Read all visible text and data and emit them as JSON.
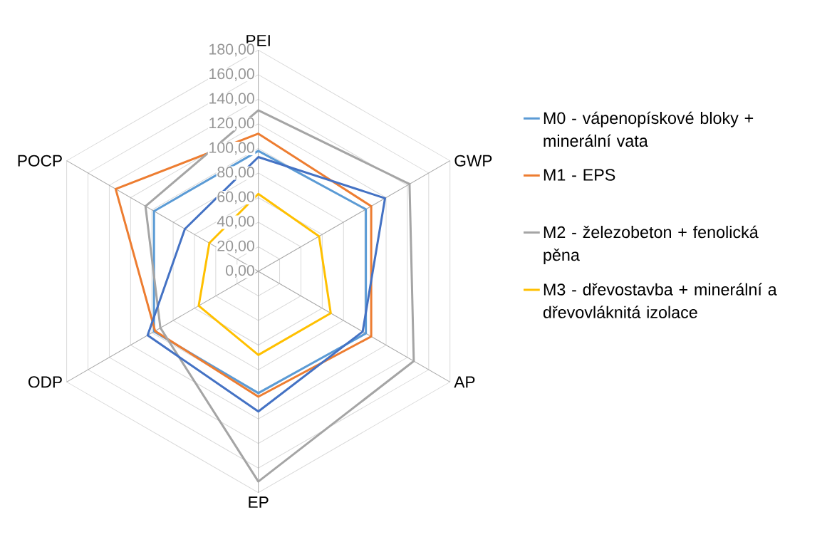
{
  "chart_data": {
    "type": "radar",
    "categories": [
      "PEI",
      "GWP",
      "AP",
      "EP",
      "ODP",
      "POCP"
    ],
    "ylim": [
      0,
      180
    ],
    "yticks": [
      {
        "value": 0,
        "label": "0,00"
      },
      {
        "value": 20,
        "label": "20,00"
      },
      {
        "value": 40,
        "label": "40,00"
      },
      {
        "value": 60,
        "label": "60,00"
      },
      {
        "value": 80,
        "label": "80,00"
      },
      {
        "value": 100,
        "label": "100,00"
      },
      {
        "value": 120,
        "label": "120,00"
      },
      {
        "value": 140,
        "label": "140,00"
      },
      {
        "value": 160,
        "label": "160,00"
      },
      {
        "value": 180,
        "label": "180,00"
      }
    ],
    "grid": true,
    "legend": "right",
    "series": [
      {
        "name": "M0 - vápenopískové bloky + minerální vata",
        "color": "#5b9bd5",
        "values": [
          98,
          101,
          101,
          99,
          98,
          98
        ]
      },
      {
        "name": "M1 - EPS",
        "color": "#ed7d31",
        "values": [
          112,
          106,
          106,
          102,
          97,
          134
        ]
      },
      {
        "name": "M2 - železobeton + fenolická pěna",
        "color": "#a5a5a5",
        "values": [
          131,
          142,
          146,
          171,
          92,
          106
        ]
      },
      {
        "name": "M3 - dřevostavba + minerální a dřevovláknitá izolace",
        "color": "#ffc000",
        "values": [
          63,
          57,
          68,
          68,
          56,
          46
        ]
      },
      {
        "color": "#4472c4",
        "values": [
          93,
          119,
          98,
          114,
          104,
          69
        ]
      }
    ]
  }
}
